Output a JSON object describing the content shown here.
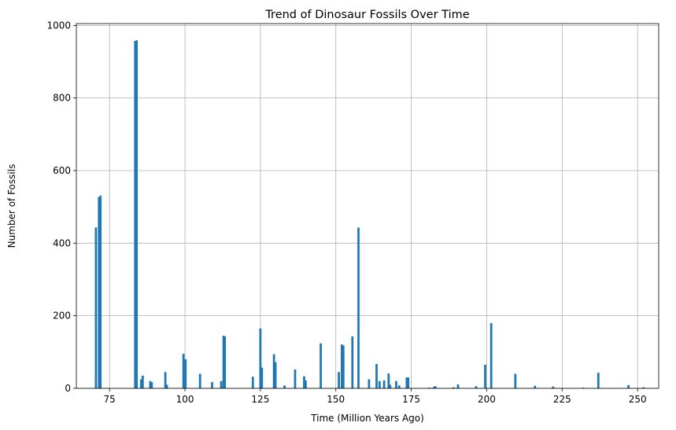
{
  "chart_data": {
    "type": "bar",
    "title": "Trend of Dinosaur Fossils Over Time",
    "xlabel": "Time (Million Years Ago)",
    "ylabel": "Number of Fossils",
    "xlim": [
      64,
      257
    ],
    "ylim": [
      0,
      1005
    ],
    "xticks": [
      75,
      100,
      125,
      150,
      175,
      200,
      225,
      250
    ],
    "yticks": [
      0,
      200,
      400,
      600,
      800,
      1000
    ],
    "grid": true,
    "bar_color": "#1f77b4",
    "x": [
      70.5,
      71.5,
      72.0,
      83.5,
      84.0,
      85.5,
      86.0,
      88.5,
      89.0,
      93.5,
      94.0,
      99.5,
      100.2,
      105.0,
      109.0,
      112.0,
      112.8,
      113.2,
      122.5,
      125.0,
      125.5,
      129.5,
      130.0,
      133.0,
      136.5,
      139.5,
      140.0,
      145.0,
      151.0,
      152.0,
      152.5,
      155.5,
      157.5,
      161.0,
      163.5,
      164.5,
      166.0,
      167.5,
      168.0,
      170.0,
      171.0,
      173.5,
      174.0,
      181.0,
      182.5,
      183.0,
      189.0,
      190.5,
      196.5,
      199.5,
      201.5,
      209.5,
      216.0,
      222.0,
      232.0,
      237.0,
      247.0,
      252.0
    ],
    "values": [
      443,
      527,
      531,
      957,
      959,
      25,
      35,
      20,
      17,
      45,
      10,
      95,
      80,
      40,
      17,
      20,
      145,
      143,
      32,
      165,
      57,
      94,
      72,
      8,
      52,
      33,
      22,
      124,
      45,
      121,
      118,
      143,
      443,
      25,
      67,
      20,
      22,
      41,
      10,
      20,
      8,
      30,
      30,
      2,
      4,
      6,
      3,
      11,
      6,
      65,
      180,
      40,
      7,
      5,
      2,
      43,
      9,
      3
    ]
  }
}
